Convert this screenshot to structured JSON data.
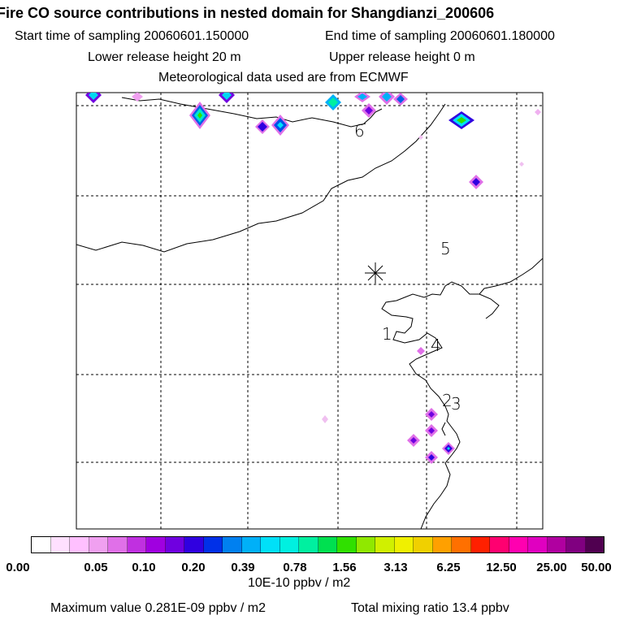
{
  "title": "Fire CO source contributions in nested domain for Shangdianzi_200606",
  "sampling": {
    "start": "Start time of sampling 20060601.150000",
    "end": "End time of sampling 20060601.180000"
  },
  "release": {
    "lower": "Lower release height   20 m",
    "upper": "Upper release height    0 m"
  },
  "met_source": "Meteorological data used are from ECMWF",
  "map": {
    "labels": [
      "6",
      "5",
      "1",
      "4",
      "2",
      "3"
    ],
    "receptor_symbol": "receptor-asterisk"
  },
  "colorbar": {
    "colors": [
      "#ffffff",
      "#ffe0ff",
      "#ffc0ff",
      "#f0a0f0",
      "#e070e8",
      "#c030e0",
      "#a000e0",
      "#7000e0",
      "#3000e0",
      "#0030e8",
      "#0080f0",
      "#00b0f8",
      "#00e0f8",
      "#00f0e0",
      "#00f0a0",
      "#00e050",
      "#30e000",
      "#90e800",
      "#d0f000",
      "#f0f000",
      "#f0d000",
      "#ffa000",
      "#ff7000",
      "#ff2000",
      "#ff0070",
      "#ff00b0",
      "#e000c0",
      "#b000a0",
      "#800080",
      "#500050"
    ],
    "tick_labels": [
      "0.00",
      "0.05",
      "0.10",
      "0.20",
      "0.39",
      "0.78",
      "1.56",
      "3.13",
      "6.25",
      "12.50",
      "25.00",
      "50.00"
    ],
    "unit": "10E-10 ppbv / m2"
  },
  "summary": {
    "max_value": "Maximum value  0.281E-09 ppbv / m2",
    "total": "Total mixing ratio       13.4 ppbv"
  }
}
